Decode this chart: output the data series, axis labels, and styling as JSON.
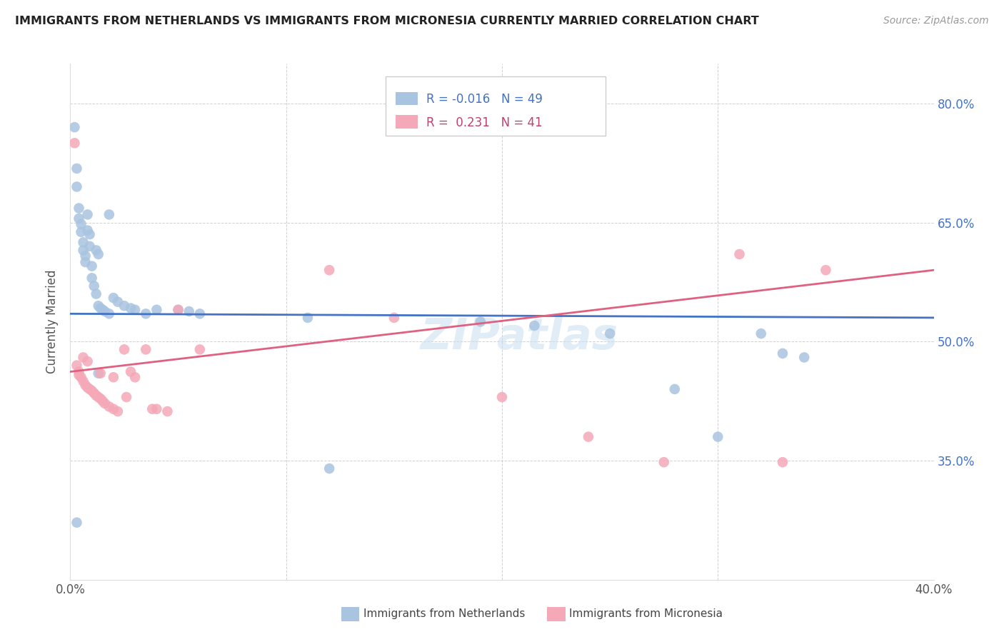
{
  "title": "IMMIGRANTS FROM NETHERLANDS VS IMMIGRANTS FROM MICRONESIA CURRENTLY MARRIED CORRELATION CHART",
  "source": "Source: ZipAtlas.com",
  "ylabel": "Currently Married",
  "xlim": [
    0.0,
    0.4
  ],
  "ylim": [
    0.2,
    0.85
  ],
  "yticks": [
    0.35,
    0.5,
    0.65,
    0.8
  ],
  "ytick_labels": [
    "35.0%",
    "50.0%",
    "65.0%",
    "80.0%"
  ],
  "xticks": [
    0.0,
    0.1,
    0.2,
    0.3,
    0.4
  ],
  "xtick_labels": [
    "0.0%",
    "",
    "",
    "",
    "40.0%"
  ],
  "blue_R": -0.016,
  "blue_N": 49,
  "pink_R": 0.231,
  "pink_N": 41,
  "blue_color": "#a8c4e0",
  "pink_color": "#f4a8b8",
  "blue_line_color": "#4472c4",
  "pink_line_color": "#e06080",
  "background_color": "#ffffff",
  "watermark": "ZIPatlas",
  "blue_x": [
    0.002,
    0.003,
    0.003,
    0.004,
    0.004,
    0.005,
    0.005,
    0.006,
    0.006,
    0.007,
    0.007,
    0.008,
    0.008,
    0.009,
    0.009,
    0.01,
    0.01,
    0.011,
    0.012,
    0.012,
    0.013,
    0.013,
    0.014,
    0.015,
    0.016,
    0.018,
    0.018,
    0.02,
    0.022,
    0.025,
    0.028,
    0.03,
    0.035,
    0.04,
    0.05,
    0.055,
    0.06,
    0.11,
    0.19,
    0.215,
    0.25,
    0.28,
    0.3,
    0.32,
    0.33,
    0.34,
    0.003,
    0.013,
    0.12
  ],
  "blue_y": [
    0.77,
    0.718,
    0.695,
    0.668,
    0.655,
    0.648,
    0.638,
    0.625,
    0.615,
    0.608,
    0.6,
    0.66,
    0.64,
    0.635,
    0.62,
    0.595,
    0.58,
    0.57,
    0.56,
    0.615,
    0.61,
    0.545,
    0.542,
    0.54,
    0.538,
    0.535,
    0.66,
    0.555,
    0.55,
    0.545,
    0.542,
    0.54,
    0.535,
    0.54,
    0.54,
    0.538,
    0.535,
    0.53,
    0.525,
    0.52,
    0.51,
    0.44,
    0.38,
    0.51,
    0.485,
    0.48,
    0.272,
    0.46,
    0.34
  ],
  "pink_x": [
    0.002,
    0.003,
    0.004,
    0.004,
    0.005,
    0.006,
    0.006,
    0.007,
    0.008,
    0.008,
    0.009,
    0.01,
    0.011,
    0.012,
    0.013,
    0.014,
    0.015,
    0.016,
    0.018,
    0.02,
    0.022,
    0.025,
    0.028,
    0.03,
    0.035,
    0.04,
    0.045,
    0.05,
    0.06,
    0.12,
    0.15,
    0.2,
    0.24,
    0.275,
    0.31,
    0.33,
    0.35,
    0.014,
    0.02,
    0.026,
    0.038
  ],
  "pink_y": [
    0.75,
    0.47,
    0.462,
    0.458,
    0.455,
    0.45,
    0.48,
    0.445,
    0.442,
    0.475,
    0.44,
    0.438,
    0.435,
    0.432,
    0.43,
    0.428,
    0.425,
    0.422,
    0.418,
    0.415,
    0.412,
    0.49,
    0.462,
    0.455,
    0.49,
    0.415,
    0.412,
    0.54,
    0.49,
    0.59,
    0.53,
    0.43,
    0.38,
    0.348,
    0.61,
    0.348,
    0.59,
    0.46,
    0.455,
    0.43,
    0.415
  ]
}
